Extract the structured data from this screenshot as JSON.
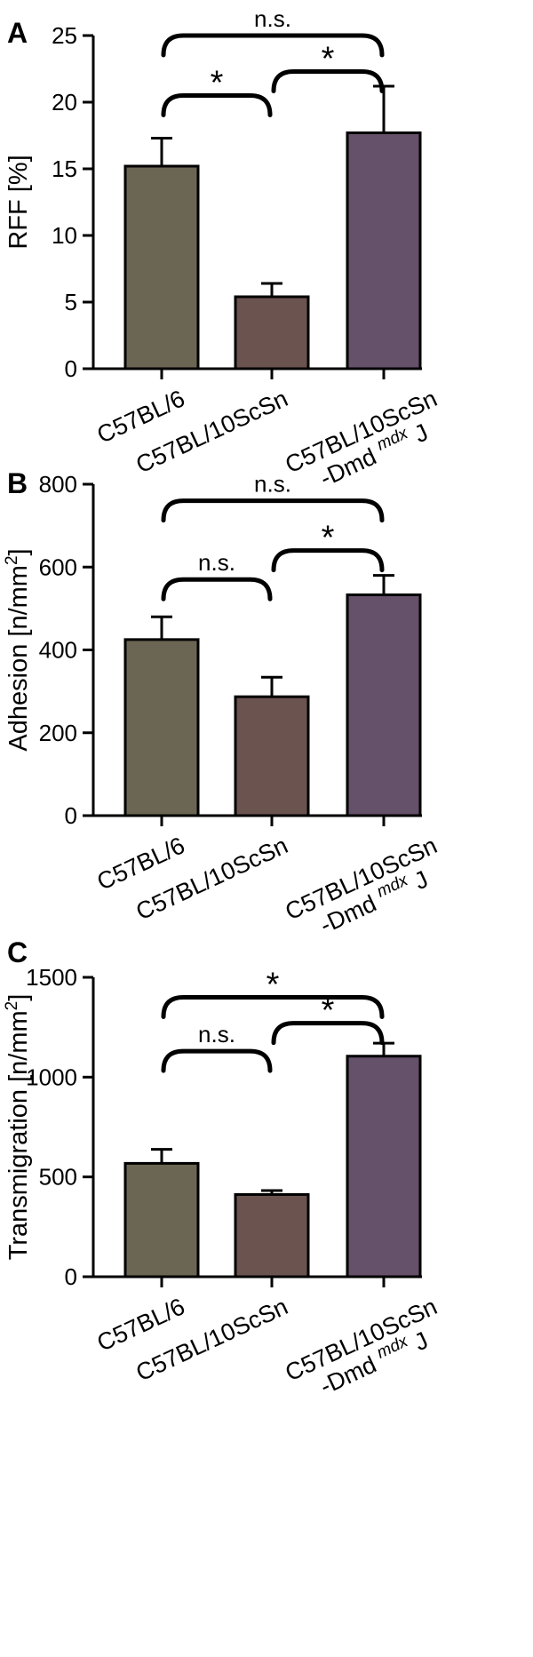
{
  "colors": {
    "C57BL/6": "#6b6553",
    "C57BL/10ScSn": "#6b5350",
    "C57BL/10ScSn-Dmd mdx J": "#655169"
  },
  "chart_data": [
    {
      "type": "bar",
      "panel": "A",
      "ylabel": "RFF [%]",
      "ylim": [
        0,
        25
      ],
      "yticks": [
        0,
        5,
        10,
        15,
        20,
        25
      ],
      "categories": [
        "C57BL/6",
        "C57BL/10ScSn",
        "C57BL/10ScSn-Dmd mdx J"
      ],
      "values": [
        15.2,
        5.4,
        17.7
      ],
      "errors": [
        2.1,
        1.0,
        3.5
      ],
      "significance": [
        {
          "pair": [
            0,
            1
          ],
          "label": "*",
          "y": 20.5
        },
        {
          "pair": [
            1,
            2
          ],
          "label": "*",
          "y": 22.3
        },
        {
          "pair": [
            0,
            2
          ],
          "label": "n.s.",
          "y": 25.0
        }
      ]
    },
    {
      "type": "bar",
      "panel": "B",
      "ylabel": "Adhesion [n/mm²]",
      "ylim": [
        0,
        800
      ],
      "yticks": [
        0,
        200,
        400,
        600,
        800
      ],
      "categories": [
        "C57BL/6",
        "C57BL/10ScSn",
        "C57BL/10ScSn-Dmd mdx J"
      ],
      "values": [
        425,
        287,
        533
      ],
      "errors": [
        55,
        47,
        47
      ],
      "significance": [
        {
          "pair": [
            0,
            1
          ],
          "label": "n.s.",
          "y": 570
        },
        {
          "pair": [
            1,
            2
          ],
          "label": "*",
          "y": 640
        },
        {
          "pair": [
            0,
            2
          ],
          "label": "n.s.",
          "y": 760
        }
      ]
    },
    {
      "type": "bar",
      "panel": "C",
      "ylabel": "Transmigration [n/mm²]",
      "ylim": [
        0,
        1500
      ],
      "yticks": [
        0,
        500,
        1000,
        1500
      ],
      "categories": [
        "C57BL/6",
        "C57BL/10ScSn",
        "C57BL/10ScSn-Dmd mdx J"
      ],
      "values": [
        568,
        412,
        1105
      ],
      "errors": [
        70,
        20,
        65
      ],
      "significance": [
        {
          "pair": [
            0,
            1
          ],
          "label": "n.s.",
          "y": 1130
        },
        {
          "pair": [
            1,
            2
          ],
          "label": "*",
          "y": 1270
        },
        {
          "pair": [
            0,
            2
          ],
          "label": "*",
          "y": 1400
        }
      ]
    }
  ],
  "category_labels": {
    "c0": "C57BL/6",
    "c1": "C57BL/10ScSn",
    "c2_main": "C57BL/10ScSn",
    "c2_line2_pre": "-Dmd",
    "c2_sup": "mdx",
    "c2_post": " J"
  }
}
